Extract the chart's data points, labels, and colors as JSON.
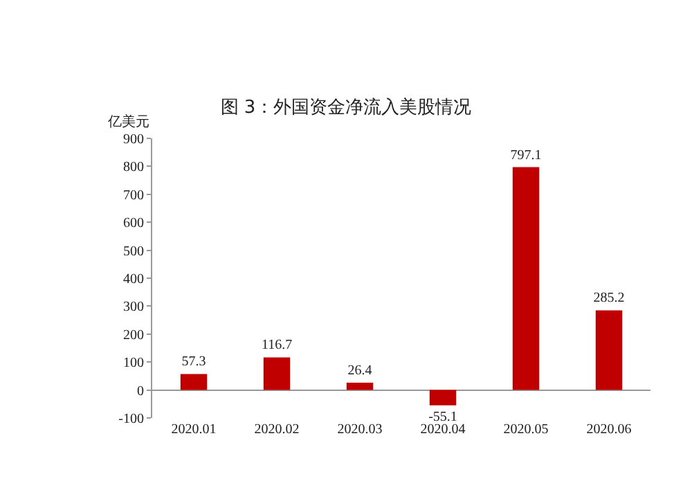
{
  "chart_data": {
    "type": "bar",
    "title": "图 3：外国资金净流入美股情况",
    "ylabel": "亿美元",
    "categories": [
      "2020.01",
      "2020.02",
      "2020.03",
      "2020.04",
      "2020.05",
      "2020.06"
    ],
    "values": [
      57.3,
      116.7,
      26.4,
      -55.1,
      797.1,
      285.2
    ],
    "color": "#c00000",
    "ylim": [
      -100,
      900
    ],
    "yticks": [
      -100,
      0,
      100,
      200,
      300,
      400,
      500,
      600,
      700,
      800,
      900
    ],
    "data_labels": true,
    "grid": false,
    "legend": false
  }
}
